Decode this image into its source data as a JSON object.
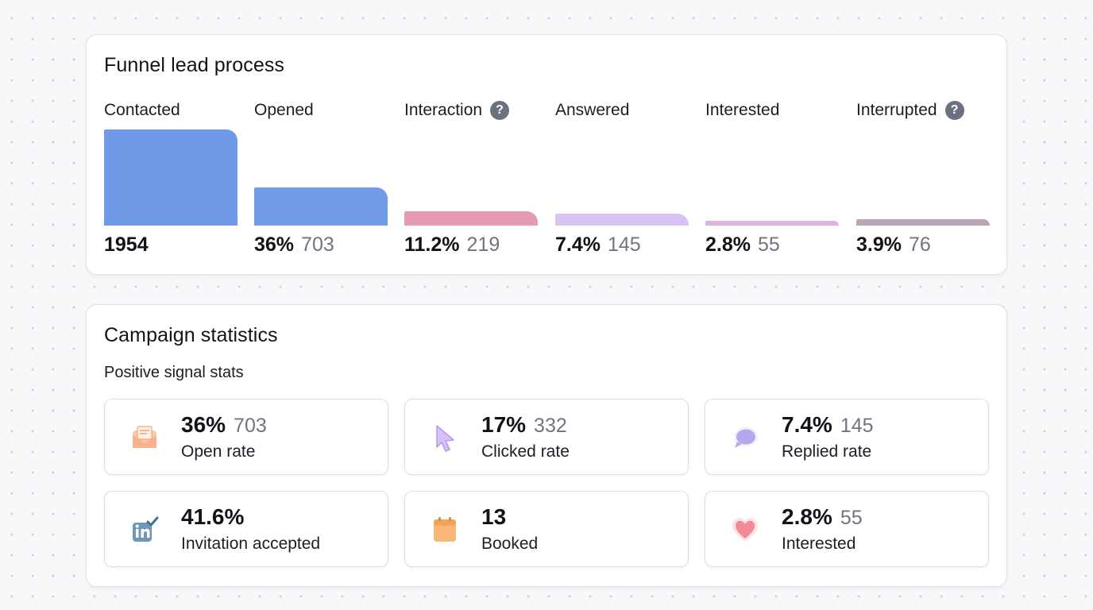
{
  "funnel": {
    "title": "Funnel lead process",
    "stages": [
      {
        "label": "Contacted",
        "percent": "",
        "count": "1954",
        "level": 1.0,
        "color": "#6f9ae8",
        "help": false
      },
      {
        "label": "Opened",
        "percent": "36%",
        "count": "703",
        "level": 0.4,
        "color": "#729ce6",
        "help": false
      },
      {
        "label": "Interaction",
        "percent": "11.2%",
        "count": "219",
        "level": 0.15,
        "color": "#e59bb6",
        "help": true
      },
      {
        "label": "Answered",
        "percent": "7.4%",
        "count": "145",
        "level": 0.12,
        "color": "#d9c3f2",
        "help": false
      },
      {
        "label": "Interested",
        "percent": "2.8%",
        "count": "55",
        "level": 0.05,
        "color": "#deb4de",
        "help": false
      },
      {
        "label": "Interrupted",
        "percent": "3.9%",
        "count": "76",
        "level": 0.07,
        "color": "#bba6b6",
        "help": true
      }
    ],
    "help_glyph": "?"
  },
  "campaign": {
    "title": "Campaign statistics",
    "subtitle": "Positive signal stats",
    "stats": [
      {
        "percent": "36%",
        "count": "703",
        "label": "Open rate",
        "icon": "envelope-icon"
      },
      {
        "percent": "17%",
        "count": "332",
        "label": "Clicked rate",
        "icon": "cursor-icon"
      },
      {
        "percent": "7.4%",
        "count": "145",
        "label": "Replied rate",
        "icon": "chat-bubble-icon"
      },
      {
        "percent": "41.6%",
        "count": "",
        "label": "Invitation accepted",
        "icon": "linkedin-check-icon"
      },
      {
        "percent": "13",
        "count": "",
        "label": "Booked",
        "icon": "calendar-icon"
      },
      {
        "percent": "2.8%",
        "count": "55",
        "label": "Interested",
        "icon": "heart-icon"
      }
    ]
  },
  "colors": {
    "page_background": "#f6f8fa",
    "card_border": "#dfe2e7",
    "muted_text": "#6f7480"
  }
}
